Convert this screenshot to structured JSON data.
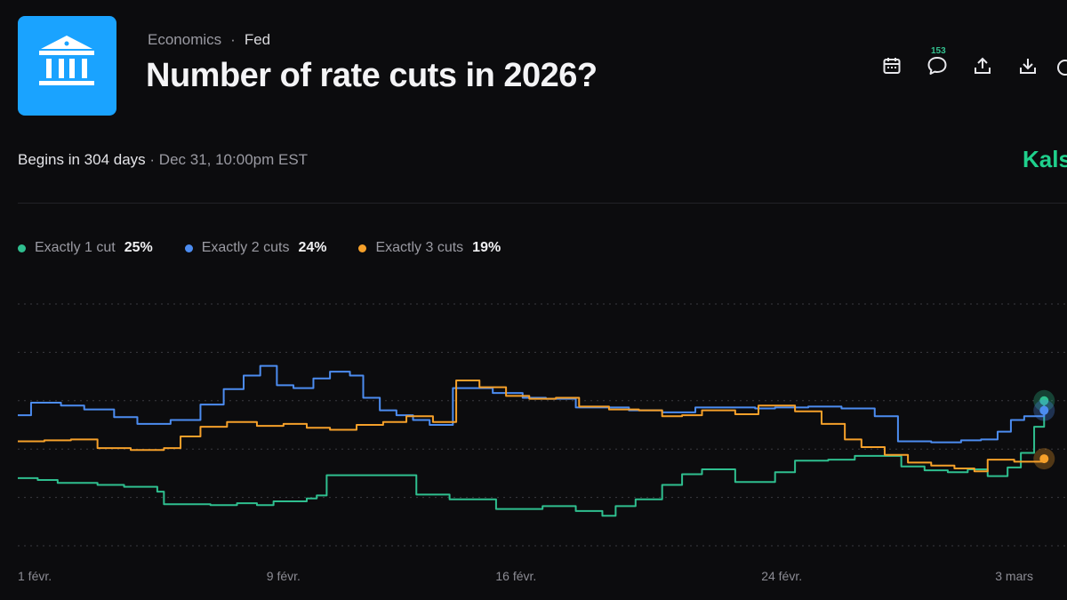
{
  "header": {
    "category": "Economics",
    "separator": "·",
    "subcategory": "Fed",
    "title": "Number of rate cuts in 2026?",
    "comment_count": "153"
  },
  "timing": {
    "begins_text": "Begins in 304 days",
    "separator": "·",
    "date_text": "Dec 31, 10:00pm EST"
  },
  "brand": {
    "name": "Kalshi",
    "color": "#1fd08c"
  },
  "legend": [
    {
      "name": "Exactly 1 cut",
      "value": "25%",
      "color": "#2fbf8f"
    },
    {
      "name": "Exactly 2 cuts",
      "value": "24%",
      "color": "#4c8cf0"
    },
    {
      "name": "Exactly 3 cuts",
      "value": "19%",
      "color": "#f5a02a"
    }
  ],
  "icons": {
    "logo": "bank-building-icon",
    "calendar": "calendar-icon",
    "comments": "comment-bubble-icon",
    "share": "share-upload-icon",
    "download": "download-icon"
  },
  "chart_data": {
    "type": "line",
    "title": "",
    "xlabel": "",
    "ylabel": "",
    "x_ticks": [
      {
        "label": "1 févr.",
        "t": 0
      },
      {
        "label": "9 févr.",
        "t": 8
      },
      {
        "label": "16 févr.",
        "t": 15
      },
      {
        "label": "24 févr.",
        "t": 23
      },
      {
        "label": "3 mars",
        "t": 30
      }
    ],
    "xlim": [
      0,
      31
    ],
    "ylim": [
      10,
      35
    ],
    "gridlines": [
      10,
      15,
      20,
      25,
      30,
      35
    ],
    "series": [
      {
        "name": "Exactly 1 cut",
        "color": "#2fbf8f",
        "points": [
          [
            0,
            17.0
          ],
          [
            0.6,
            16.8
          ],
          [
            1.2,
            16.5
          ],
          [
            2.4,
            16.3
          ],
          [
            3.2,
            16.1
          ],
          [
            4.2,
            15.6
          ],
          [
            4.4,
            14.3
          ],
          [
            5.8,
            14.2
          ],
          [
            6.6,
            14.4
          ],
          [
            7.2,
            14.2
          ],
          [
            7.7,
            14.6
          ],
          [
            8.5,
            14.6
          ],
          [
            8.7,
            14.9
          ],
          [
            9.0,
            15.2
          ],
          [
            9.3,
            17.3
          ],
          [
            11.7,
            17.3
          ],
          [
            12.0,
            15.3
          ],
          [
            13.0,
            14.8
          ],
          [
            14.4,
            13.8
          ],
          [
            15.8,
            14.1
          ],
          [
            16.8,
            13.6
          ],
          [
            17.6,
            13.1
          ],
          [
            18.0,
            14.1
          ],
          [
            18.6,
            14.8
          ],
          [
            19.4,
            16.3
          ],
          [
            20.0,
            17.4
          ],
          [
            20.6,
            17.9
          ],
          [
            21.6,
            16.6
          ],
          [
            22.8,
            17.6
          ],
          [
            23.4,
            18.8
          ],
          [
            24.4,
            18.9
          ],
          [
            25.2,
            19.3
          ],
          [
            26.0,
            19.3
          ],
          [
            26.6,
            18.2
          ],
          [
            27.3,
            17.8
          ],
          [
            28.0,
            17.6
          ],
          [
            28.6,
            17.9
          ],
          [
            29.2,
            17.2
          ],
          [
            29.8,
            18.1
          ],
          [
            30.2,
            19.6
          ],
          [
            30.6,
            22.3
          ],
          [
            30.9,
            25.0
          ]
        ]
      },
      {
        "name": "Exactly 2 cuts",
        "color": "#4c8cf0",
        "points": [
          [
            0,
            23.5
          ],
          [
            0.4,
            24.8
          ],
          [
            1.3,
            24.5
          ],
          [
            2.0,
            24.1
          ],
          [
            2.9,
            23.3
          ],
          [
            3.6,
            22.6
          ],
          [
            4.6,
            23.0
          ],
          [
            5.5,
            24.6
          ],
          [
            6.2,
            26.2
          ],
          [
            6.8,
            27.6
          ],
          [
            7.3,
            28.6
          ],
          [
            7.8,
            26.6
          ],
          [
            8.3,
            26.3
          ],
          [
            8.9,
            27.3
          ],
          [
            9.4,
            28.0
          ],
          [
            10.0,
            27.6
          ],
          [
            10.4,
            25.3
          ],
          [
            10.9,
            24.0
          ],
          [
            11.4,
            23.5
          ],
          [
            11.9,
            23.0
          ],
          [
            12.4,
            22.5
          ],
          [
            12.9,
            22.5
          ],
          [
            13.1,
            26.3
          ],
          [
            14.3,
            25.8
          ],
          [
            15.2,
            25.3
          ],
          [
            15.9,
            25.2
          ],
          [
            16.8,
            24.3
          ],
          [
            18.4,
            24.0
          ],
          [
            19.4,
            23.8
          ],
          [
            20.4,
            24.3
          ],
          [
            21.4,
            24.3
          ],
          [
            22.2,
            24.2
          ],
          [
            22.8,
            24.3
          ],
          [
            23.8,
            24.4
          ],
          [
            24.8,
            24.2
          ],
          [
            25.8,
            23.4
          ],
          [
            26.5,
            20.8
          ],
          [
            27.5,
            20.7
          ],
          [
            28.4,
            20.9
          ],
          [
            29.0,
            21.0
          ],
          [
            29.5,
            21.8
          ],
          [
            29.9,
            23.0
          ],
          [
            30.3,
            23.4
          ],
          [
            30.9,
            24.0
          ]
        ]
      },
      {
        "name": "Exactly 3 cuts",
        "color": "#f5a02a",
        "points": [
          [
            0,
            20.8
          ],
          [
            0.8,
            20.9
          ],
          [
            1.6,
            21.0
          ],
          [
            2.4,
            20.1
          ],
          [
            3.4,
            19.9
          ],
          [
            4.4,
            20.1
          ],
          [
            4.9,
            21.3
          ],
          [
            5.5,
            22.3
          ],
          [
            6.3,
            22.8
          ],
          [
            7.2,
            22.4
          ],
          [
            8.0,
            22.6
          ],
          [
            8.7,
            22.2
          ],
          [
            9.4,
            22.0
          ],
          [
            10.2,
            22.5
          ],
          [
            11.0,
            22.8
          ],
          [
            11.7,
            23.4
          ],
          [
            12.5,
            22.8
          ],
          [
            13.1,
            22.8
          ],
          [
            13.2,
            27.1
          ],
          [
            13.9,
            26.4
          ],
          [
            14.7,
            25.5
          ],
          [
            15.4,
            25.2
          ],
          [
            16.2,
            25.3
          ],
          [
            16.9,
            24.4
          ],
          [
            17.8,
            24.1
          ],
          [
            18.7,
            24.0
          ],
          [
            19.4,
            23.4
          ],
          [
            20.0,
            23.5
          ],
          [
            20.6,
            24.0
          ],
          [
            21.6,
            23.6
          ],
          [
            22.3,
            24.5
          ],
          [
            23.4,
            23.9
          ],
          [
            24.2,
            22.6
          ],
          [
            24.9,
            21.0
          ],
          [
            25.4,
            20.2
          ],
          [
            26.1,
            19.4
          ],
          [
            26.8,
            18.6
          ],
          [
            27.5,
            18.3
          ],
          [
            28.2,
            18.0
          ],
          [
            28.8,
            17.7
          ],
          [
            29.2,
            18.9
          ],
          [
            30.0,
            18.7
          ],
          [
            30.6,
            18.7
          ],
          [
            30.9,
            19.0
          ]
        ]
      }
    ]
  }
}
